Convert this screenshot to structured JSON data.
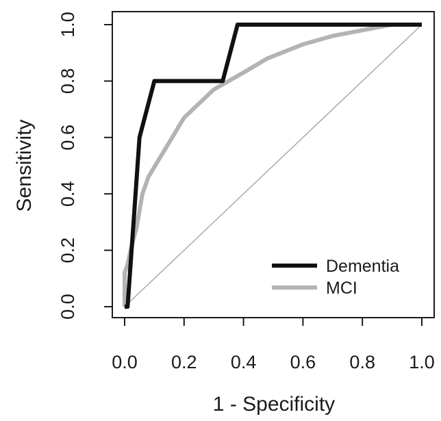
{
  "chart_data": {
    "type": "line",
    "title": "",
    "xlabel": "1 - Specificity",
    "ylabel": "Sensitivity",
    "xlim": [
      0,
      1
    ],
    "ylim": [
      0,
      1
    ],
    "x_ticks": [
      "0.0",
      "0.2",
      "0.4",
      "0.6",
      "0.8",
      "1.0"
    ],
    "y_ticks": [
      "0.0",
      "0.2",
      "0.4",
      "0.6",
      "0.8",
      "1.0"
    ],
    "grid": false,
    "legend_position": "bottom-right",
    "reference_line": {
      "x": [
        0,
        1
      ],
      "y": [
        0,
        1
      ],
      "color": "#a8a8a8"
    },
    "series": [
      {
        "name": "Dementia",
        "color": "#111111",
        "x": [
          0.0,
          0.01,
          0.02,
          0.04,
          0.05,
          0.1,
          0.33,
          0.38,
          0.84,
          1.0
        ],
        "y": [
          0.0,
          0.0,
          0.15,
          0.45,
          0.6,
          0.8,
          0.8,
          1.0,
          1.0,
          1.0
        ]
      },
      {
        "name": "MCI",
        "color": "#b3b3b3",
        "x": [
          0.0,
          0.0,
          0.01,
          0.02,
          0.04,
          0.06,
          0.08,
          0.12,
          0.2,
          0.3,
          0.4,
          0.48,
          0.6,
          0.7,
          0.8,
          0.9,
          1.0
        ],
        "y": [
          0.0,
          0.12,
          0.15,
          0.2,
          0.28,
          0.4,
          0.46,
          0.53,
          0.67,
          0.77,
          0.83,
          0.88,
          0.93,
          0.96,
          0.98,
          1.0,
          1.0
        ]
      }
    ]
  }
}
